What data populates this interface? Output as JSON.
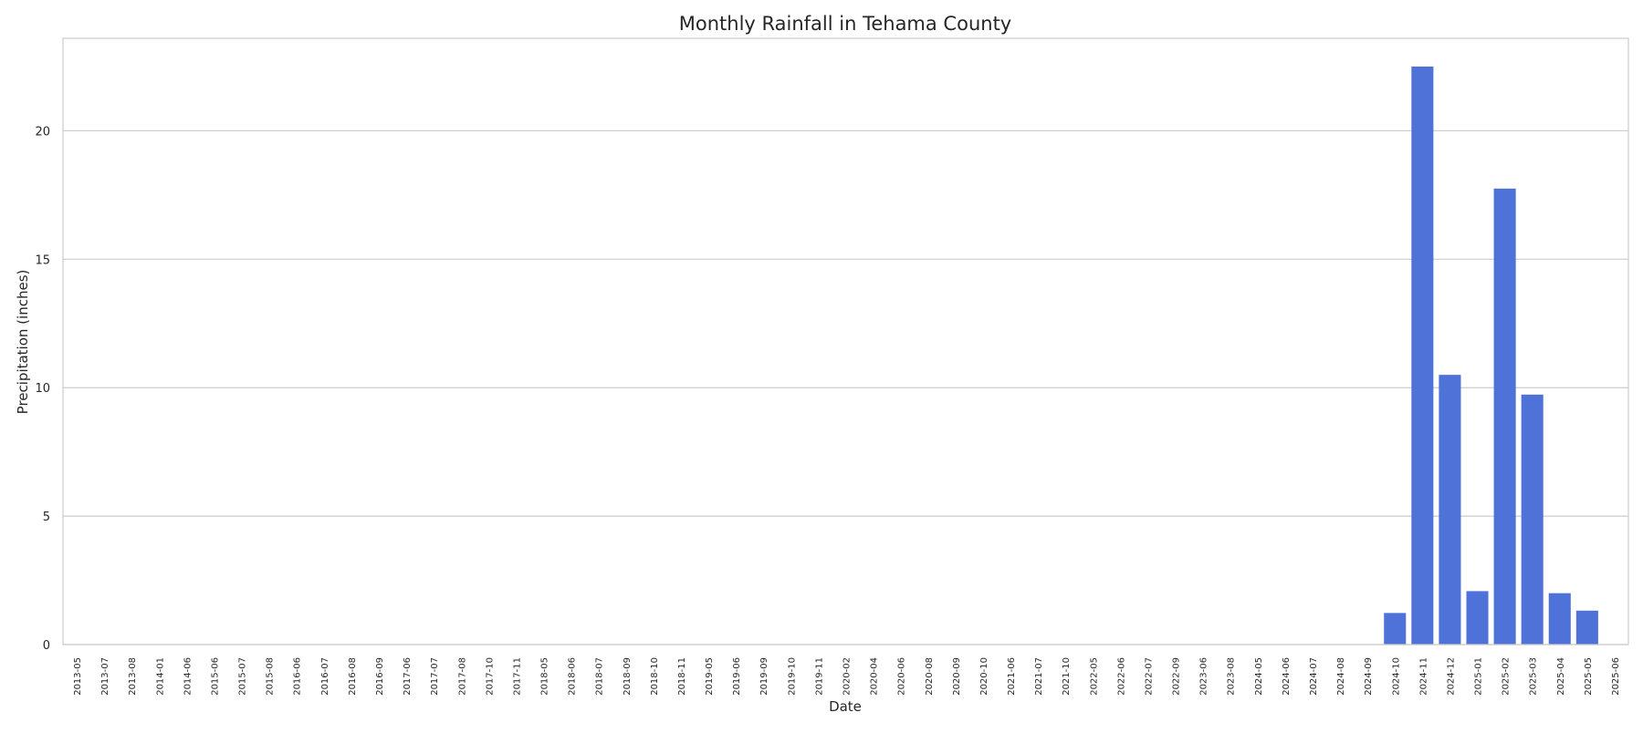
{
  "chart_data": {
    "type": "bar",
    "title": "Monthly Rainfall in Tehama County",
    "xlabel": "Date",
    "ylabel": "Precipitation (inches)",
    "ylim": [
      0,
      23.6
    ],
    "yticks": [
      0,
      5,
      10,
      15,
      20
    ],
    "grid": "horizontal",
    "legend": "none",
    "bar_color": "#4e72d8",
    "categories": [
      "2013-05",
      "2013-07",
      "2013-08",
      "2014-01",
      "2014-06",
      "2015-06",
      "2015-07",
      "2015-08",
      "2016-06",
      "2016-07",
      "2016-08",
      "2016-09",
      "2017-06",
      "2017-07",
      "2017-08",
      "2017-10",
      "2017-11",
      "2018-05",
      "2018-06",
      "2018-07",
      "2018-09",
      "2018-10",
      "2018-11",
      "2019-05",
      "2019-06",
      "2019-09",
      "2019-10",
      "2019-11",
      "2020-02",
      "2020-04",
      "2020-06",
      "2020-08",
      "2020-09",
      "2020-10",
      "2021-06",
      "2021-07",
      "2021-10",
      "2022-05",
      "2022-06",
      "2022-07",
      "2022-09",
      "2023-06",
      "2023-08",
      "2024-05",
      "2024-06",
      "2024-07",
      "2024-08",
      "2024-09",
      "2024-10",
      "2024-11",
      "2024-12",
      "2025-01",
      "2025-02",
      "2025-03",
      "2025-04",
      "2025-05",
      "2025-06"
    ],
    "values": [
      0,
      0,
      0,
      0,
      0,
      0,
      0,
      0,
      0,
      0,
      0,
      0,
      0,
      0,
      0,
      0,
      0,
      0,
      0,
      0,
      0,
      0,
      0,
      0,
      0,
      0,
      0,
      0,
      0,
      0,
      0,
      0,
      0,
      0,
      0,
      0,
      0,
      0,
      0,
      0,
      0,
      0,
      0,
      0,
      0,
      0,
      0,
      0,
      1.23,
      22.5,
      10.5,
      2.08,
      17.75,
      9.73,
      2.0,
      1.32,
      0
    ]
  }
}
